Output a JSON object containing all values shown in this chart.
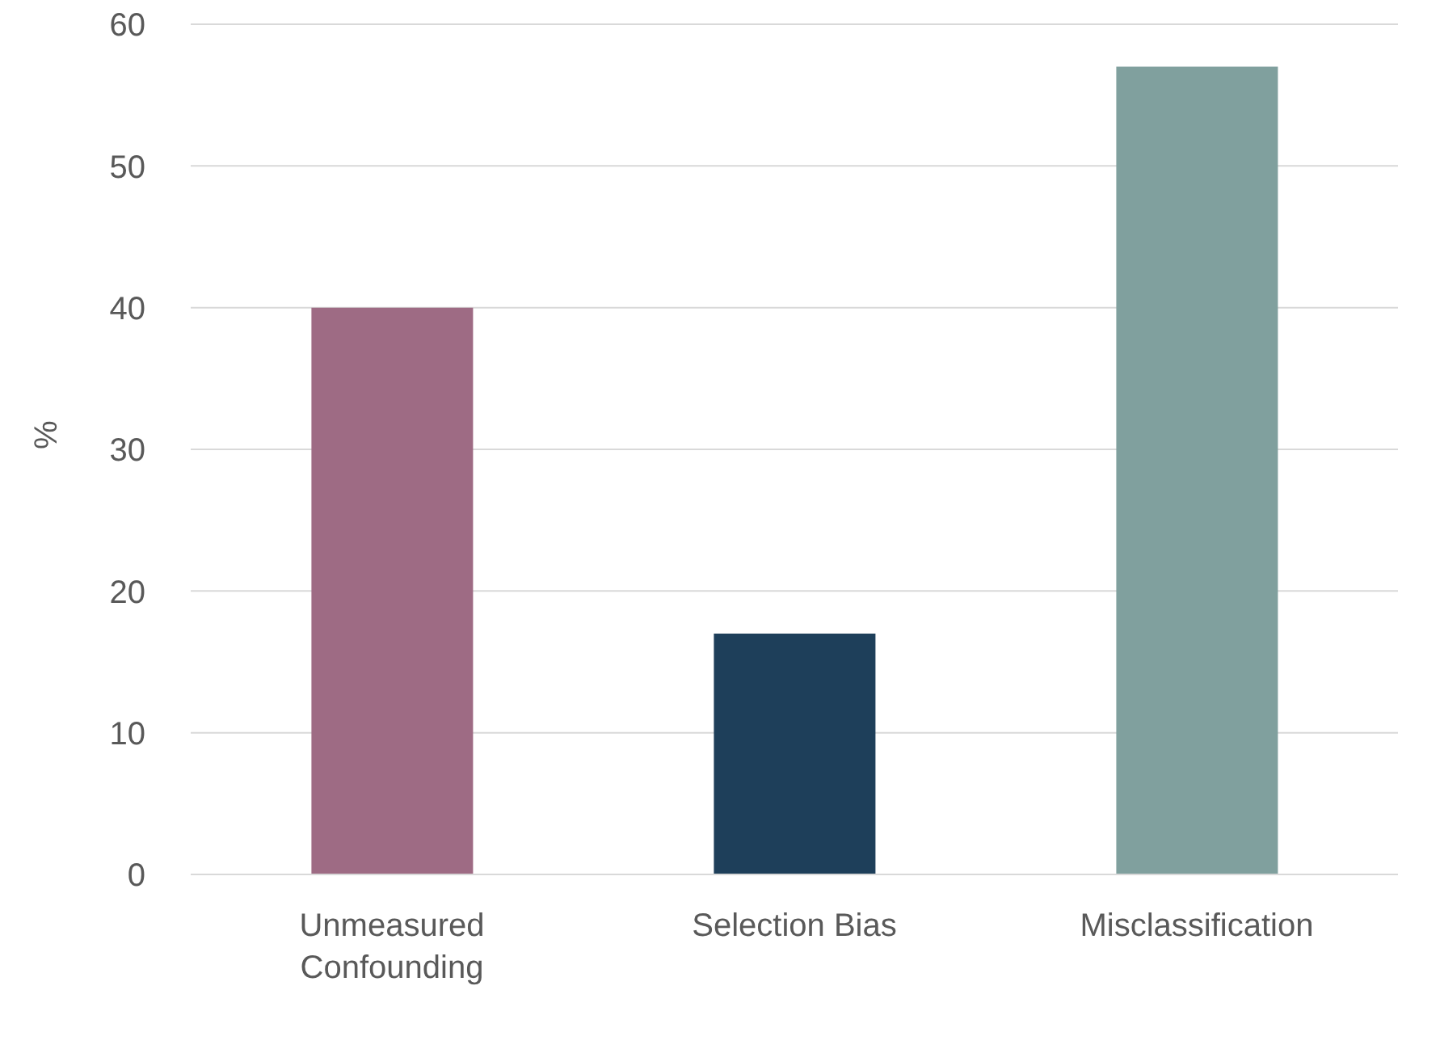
{
  "chart_data": {
    "type": "bar",
    "ylabel": "%",
    "categories": [
      "Unmeasured Confounding",
      "Selection Bias",
      "Misclassification"
    ],
    "values": [
      40,
      17,
      57
    ],
    "colors": [
      "#9e6b84",
      "#1e3f5a",
      "#80a09e"
    ],
    "ylim": [
      0,
      60
    ],
    "yticks": [
      0,
      10,
      20,
      30,
      40,
      50,
      60
    ],
    "grid": "y",
    "legend": false
  }
}
